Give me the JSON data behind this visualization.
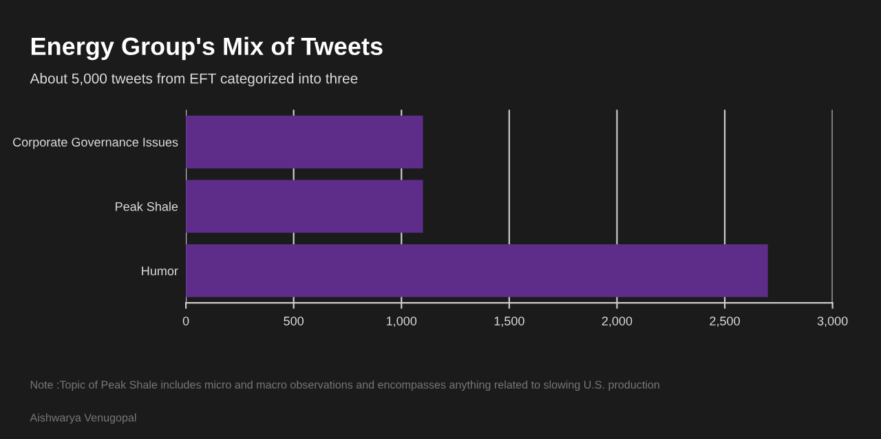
{
  "chart_data": {
    "type": "bar",
    "orientation": "horizontal",
    "title": "Energy Group's Mix of Tweets",
    "subtitle": "About 5,000 tweets from EFT categorized into three",
    "categories": [
      "Corporate Governance Issues",
      "Peak Shale",
      "Humor"
    ],
    "values": [
      1100,
      1100,
      2700
    ],
    "color": "#5e2d89",
    "xlim": [
      0,
      3000
    ],
    "xticks": [
      0,
      500,
      {
        "value": 1000,
        "label": "1,000"
      },
      {
        "value": 1500,
        "label": "1,500"
      },
      {
        "value": 2000,
        "label": "2,000"
      },
      {
        "value": 2500,
        "label": "2,500"
      },
      {
        "value": 3000,
        "label": "3,000"
      }
    ],
    "grid": "x",
    "annotations": [
      "Note :Topic of Peak Shale includes micro and macro observations and encompasses anything related to slowing U.S. production",
      "Aishwarya Venugopal"
    ]
  }
}
